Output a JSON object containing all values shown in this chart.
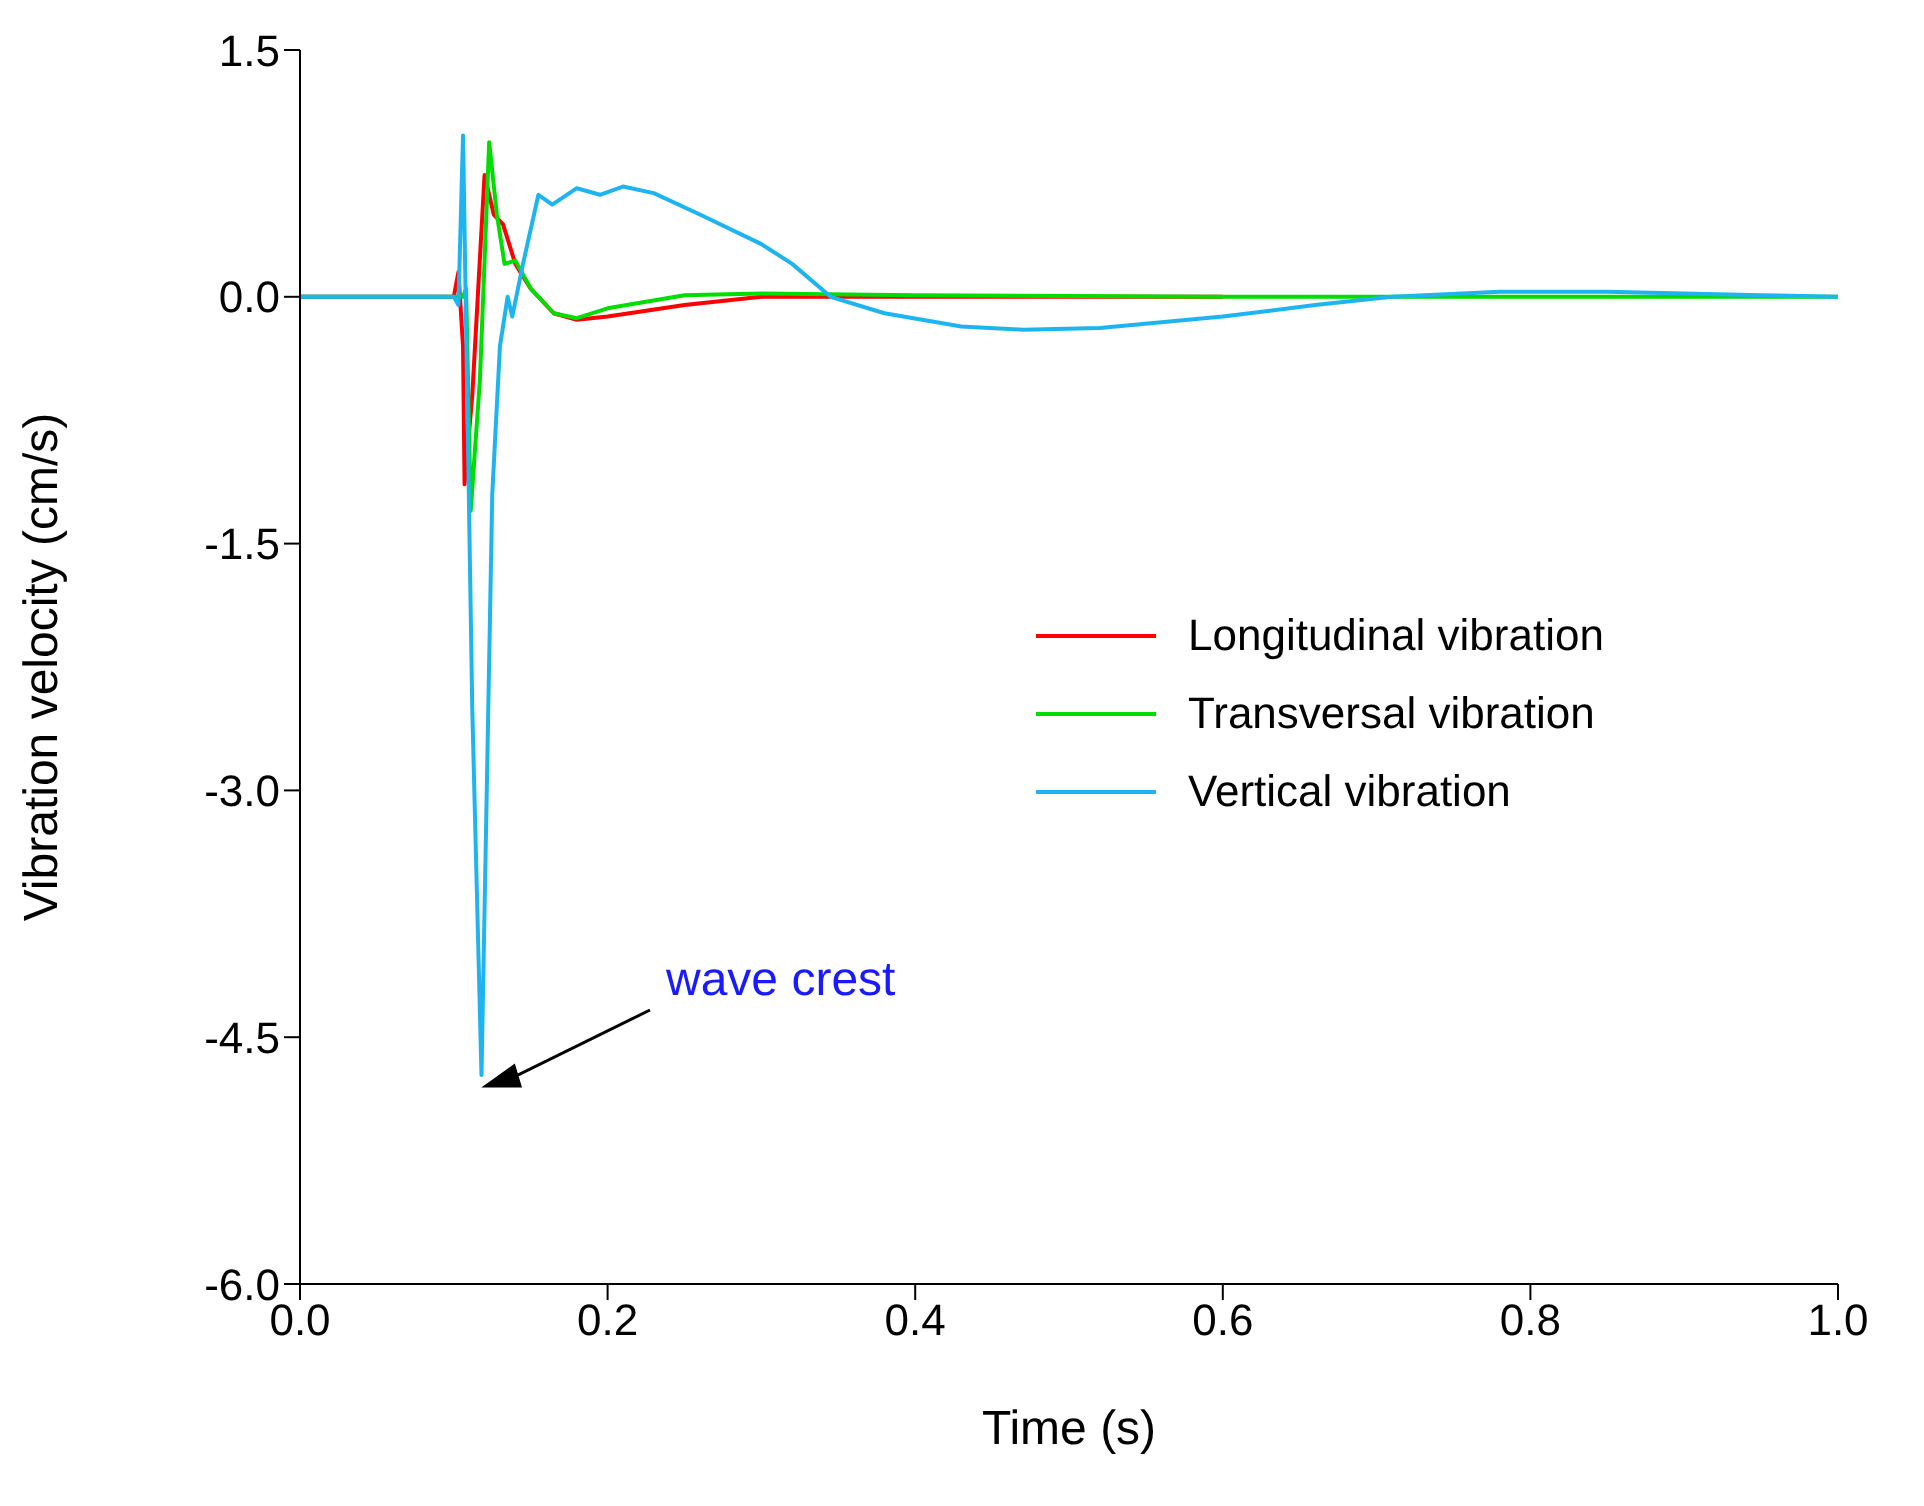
{
  "chart_data": {
    "type": "line",
    "xlabel": "Time (s)",
    "ylabel": "Vibration velocity (cm/s)",
    "xlim": [
      0,
      1
    ],
    "xticks": [
      {
        "value": 0,
        "label": "0.0"
      },
      0.2,
      0.4,
      0.6,
      0.8,
      {
        "value": 1,
        "label": "1.0"
      }
    ],
    "ylim": [
      -6,
      1.5
    ],
    "yticks": [
      1.5,
      {
        "value": 0,
        "label": "0.0"
      },
      -1.5,
      {
        "value": -3,
        "label": "-3.0"
      },
      -4.5,
      {
        "value": -6,
        "label": "-6.0"
      }
    ],
    "legend": "right",
    "grid": false,
    "line_style": "solid",
    "annotations": [
      "wave crest"
    ],
    "series": [
      {
        "name": "Longitudinal vibration",
        "color": "#ff0000",
        "x": [
          0,
          0.05,
          0.1,
          0.103,
          0.106,
          0.107,
          0.112,
          0.12,
          0.126,
          0.132,
          0.14,
          0.15,
          0.165,
          0.18,
          0.2,
          0.25,
          0.3,
          0.6
        ],
        "values": [
          0,
          0,
          0,
          0.15,
          -0.3,
          -1.14,
          -0.6,
          0.74,
          0.5,
          0.44,
          0.2,
          0.05,
          -0.1,
          -0.14,
          -0.12,
          -0.05,
          0,
          0
        ]
      },
      {
        "name": "Transversal vibration",
        "color": "#00dd00",
        "x": [
          0,
          0.05,
          0.1,
          0.106,
          0.108,
          0.111,
          0.117,
          0.123,
          0.128,
          0.133,
          0.14,
          0.15,
          0.165,
          0.18,
          0.2,
          0.25,
          0.3,
          0.4,
          0.6,
          0.8,
          1
        ],
        "values": [
          0,
          0,
          0,
          0,
          0.05,
          -1.3,
          -0.5,
          0.94,
          0.5,
          0.2,
          0.22,
          0.05,
          -0.1,
          -0.13,
          -0.07,
          0.01,
          0.02,
          0.01,
          0,
          0,
          0
        ]
      },
      {
        "name": "Vertical vibration",
        "color": "#1eb4f0",
        "x": [
          0,
          0.05,
          0.1,
          0.103,
          0.106,
          0.112,
          0.118,
          0.125,
          0.13,
          0.135,
          0.138,
          0.145,
          0.155,
          0.164,
          0.18,
          0.195,
          0.21,
          0.23,
          0.26,
          0.3,
          0.32,
          0.345,
          0.38,
          0.43,
          0.47,
          0.52,
          0.6,
          0.66,
          0.71,
          0.78,
          0.85,
          0.95,
          1
        ],
        "values": [
          0,
          0,
          0,
          -0.05,
          0.98,
          -2.5,
          -4.73,
          -1.2,
          -0.3,
          0,
          -0.12,
          0.2,
          0.62,
          0.56,
          0.66,
          0.62,
          0.67,
          0.63,
          0.5,
          0.32,
          0.2,
          0,
          -0.1,
          -0.18,
          -0.2,
          -0.19,
          -0.12,
          -0.05,
          0,
          0.03,
          0.03,
          0.01,
          0
        ]
      }
    ]
  }
}
